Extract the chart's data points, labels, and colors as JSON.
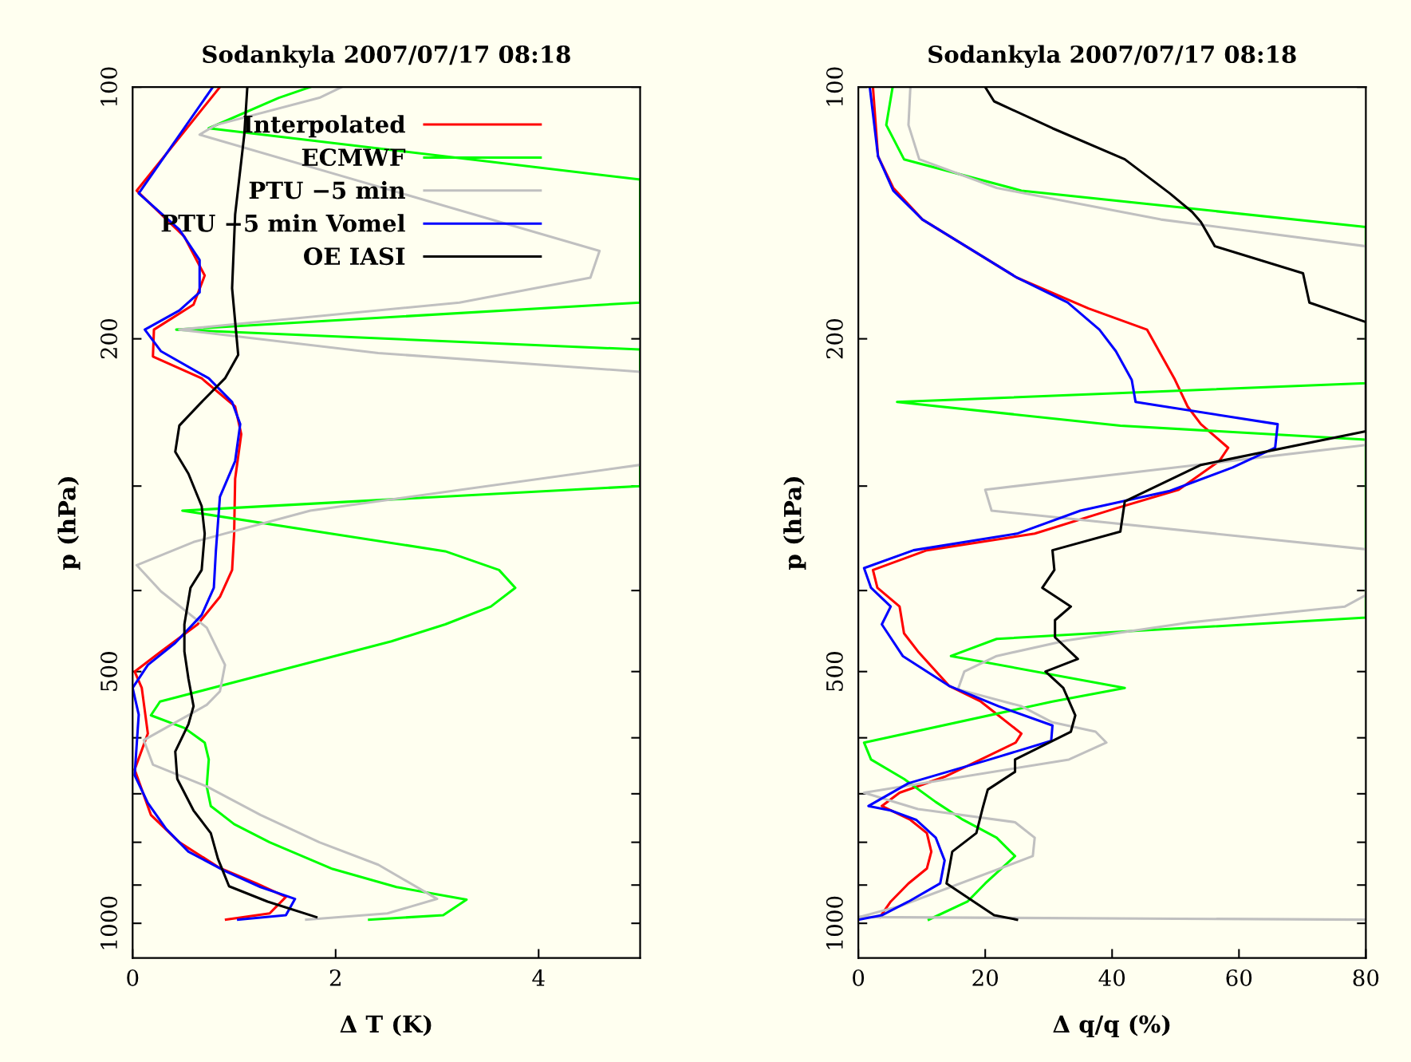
{
  "chart_data": [
    {
      "type": "line",
      "title": "Sodankyla 2007/07/17 08:18",
      "xlabel": "Δ T (K)",
      "ylabel": "p (hPa)",
      "xlim": [
        0,
        5
      ],
      "xticks": [
        0,
        2,
        4
      ],
      "ylim": [
        1100,
        100
      ],
      "log": "y",
      "yticks": [
        100,
        200,
        {
          "value": 300,
          "label": null
        },
        {
          "value": 400,
          "label": null
        },
        500,
        {
          "value": 600,
          "label": null
        },
        {
          "value": 700,
          "label": null
        },
        {
          "value": 800,
          "label": null
        },
        {
          "value": 900,
          "label": null
        },
        1000
      ],
      "legend": "top left",
      "grid": false,
      "series": [
        {
          "name": "Interpolated",
          "color": "#ff0000",
          "x": [
            0.86,
            0.04,
            0.51,
            0.71,
            0.6,
            0.21,
            0.2,
            0.68,
            1.01,
            1.07,
            1.01,
            1.0,
            0.98,
            0.86,
            0.64,
            0.28,
            0.02,
            0.09,
            0.15,
            0.02,
            0.18,
            0.46,
            0.86,
            1.22,
            1.51,
            1.35,
            0.92
          ],
          "values": [
            100,
            133,
            151,
            168,
            182,
            195,
            210,
            223,
            241,
            260,
            294,
            342,
            378,
            407,
            439,
            473,
            500,
            523,
            593,
            655,
            742,
            800,
            859,
            896,
            930,
            973,
            990
          ]
        },
        {
          "name": "ECMWF",
          "color": "#00ff00",
          "x": [
            1.75,
            1.44,
            0.75,
            5.0,
            5.0,
            0.43,
            5.0,
            5.0,
            0.49,
            3.08,
            3.61,
            3.77,
            3.53,
            3.08,
            2.55,
            0.27,
            0.18,
            0.51,
            0.71,
            0.75,
            0.73,
            0.77,
            1.0,
            1.35,
            1.97,
            2.6,
            3.29,
            3.06,
            2.33
          ],
          "values": [
            100,
            103,
            112,
            129,
            181,
            195,
            206,
            300,
            321,
            359,
            378,
            397,
            418,
            439,
            460,
            543,
            564,
            584,
            608,
            637,
            686,
            724,
            761,
            800,
            861,
            905,
            937,
            978,
            990
          ]
        },
        {
          "name": "PTU −5 min",
          "color": "#c0c0c0",
          "x": [
            2.06,
            1.84,
            0.82,
            0.66,
            4.6,
            4.51,
            3.22,
            0.46,
            2.42,
            5.0,
            5.0,
            1.75,
            0.6,
            0.04,
            0.28,
            0.73,
            0.91,
            0.86,
            0.73,
            0.11,
            0.2,
            0.73,
            1.26,
            1.84,
            2.42,
            3.0,
            2.51,
            1.71
          ],
          "values": [
            100,
            103,
            111,
            114,
            157,
            169,
            181,
            195,
            208,
            219,
            283,
            321,
            350,
            373,
            401,
            443,
            491,
            528,
            548,
            604,
            646,
            686,
            742,
            800,
            851,
            935,
            973,
            990
          ]
        },
        {
          "name": "PTU −5 min Vomel",
          "color": "#0000ff",
          "x": [
            0.79,
            0.06,
            0.46,
            0.66,
            0.66,
            0.46,
            0.12,
            0.28,
            0.75,
            0.98,
            1.06,
            1.01,
            0.86,
            0.82,
            0.8,
            0.68,
            0.42,
            0.15,
            0.0,
            0.06,
            0.02,
            0.15,
            0.33,
            0.55,
            0.91,
            1.26,
            1.6,
            1.51,
            1.04
          ],
          "values": [
            100,
            134,
            148,
            161,
            176,
            185,
            195,
            207,
            223,
            238,
            253,
            280,
            309,
            359,
            397,
            428,
            462,
            491,
            523,
            563,
            665,
            718,
            771,
            821,
            866,
            905,
            935,
            978,
            990
          ]
        },
        {
          "name": "OE IASI",
          "color": "#000000",
          "x": [
            1.13,
            1.1,
            1.01,
            0.98,
            1.04,
            0.91,
            0.68,
            0.46,
            0.42,
            0.55,
            0.68,
            0.71,
            0.68,
            0.57,
            0.51,
            0.51,
            0.55,
            0.6,
            0.55,
            0.42,
            0.44,
            0.6,
            0.77,
            0.84,
            0.95,
            1.33,
            1.81
          ],
          "values": [
            100,
            114,
            142,
            174,
            209,
            223,
            238,
            254,
            273,
            290,
            317,
            342,
            378,
            397,
            439,
            473,
            510,
            550,
            578,
            623,
            672,
            733,
            780,
            837,
            903,
            942,
            983
          ]
        }
      ]
    },
    {
      "type": "line",
      "title": "Sodankyla 2007/07/17 08:18",
      "xlabel": "Δ q/q (%)",
      "ylabel": "p (hPa)",
      "xlim": [
        0,
        80
      ],
      "xticks": [
        0,
        20,
        40,
        60,
        80
      ],
      "ylim": [
        1100,
        100
      ],
      "log": "y",
      "yticks": [
        100,
        200,
        {
          "value": 300,
          "label": null
        },
        {
          "value": 400,
          "label": null
        },
        500,
        {
          "value": 600,
          "label": null
        },
        {
          "value": 700,
          "label": null
        },
        {
          "value": 800,
          "label": null
        },
        {
          "value": 900,
          "label": null
        },
        1000
      ],
      "grid": false,
      "series": [
        {
          "color": "#ff0000",
          "x": [
            2.3,
            3.1,
            5.5,
            10.1,
            25,
            36.3,
            45.5,
            49.8,
            51.9,
            54.0,
            58.3,
            56.9,
            50.5,
            40.6,
            27.8,
            10.8,
            2.3,
            3.0,
            6.5,
            7.2,
            9.4,
            14.3,
            19.3,
            25.7,
            24.8,
            19.3,
            13.6,
            6.5,
            3.7,
            8.2,
            10.8,
            11.5,
            10.8,
            7.9,
            5.1,
            3.4
          ],
          "values": [
            100,
            121,
            132,
            144,
            169,
            184,
            195,
            223,
            241,
            253,
            270,
            280,
            303,
            319,
            342,
            358,
            378,
            397,
            418,
            450,
            473,
            520,
            543,
            593,
            608,
            637,
            668,
            698,
            724,
            752,
            780,
            821,
            860,
            896,
            942,
            983
          ]
        },
        {
          "color": "#00ff00",
          "x": [
            5.4,
            4.4,
            7.2,
            25.7,
            80,
            80,
            6.1,
            41.3,
            80,
            80,
            21.8,
            14.6,
            42.0,
            30.6,
            0.9,
            2.0,
            7.2,
            12.2,
            16.5,
            21.8,
            24.7,
            20.0,
            17.2,
            11.1
          ],
          "values": [
            100,
            111,
            122,
            133,
            147,
            226,
            238,
            254,
            264,
            431,
            457,
            479,
            523,
            543,
            608,
            637,
            672,
            716,
            752,
            790,
            831,
            896,
            942,
            990
          ]
        },
        {
          "color": "#c0c0c0",
          "x": [
            8.2,
            7.9,
            9.6,
            21.8,
            47.7,
            80,
            80,
            20.0,
            21.0,
            80,
            80,
            76.7,
            51.9,
            32.8,
            21.8,
            16.7,
            15.7,
            25.7,
            30.6,
            37.4,
            39.1,
            33.2,
            0.9,
            9.4,
            24.7,
            27.8,
            27.5,
            6.5,
            0.1,
            80
          ],
          "values": [
            100,
            111,
            122,
            132,
            144,
            155,
            268,
            303,
            321,
            357,
            405,
            418,
            437,
            459,
            479,
            500,
            525,
            550,
            575,
            590,
            608,
            637,
            698,
            730,
            757,
            790,
            831,
            954,
            983,
            990
          ]
        },
        {
          "color": "#0000ff",
          "x": [
            1.8,
            3.1,
            5.5,
            10.1,
            25,
            33.0,
            38.0,
            40.6,
            43.1,
            43.7,
            66.1,
            65.7,
            59.0,
            49.1,
            35.0,
            25,
            8.7,
            0.9,
            2.0,
            5.1,
            3.7,
            7.0,
            14.3,
            22.1,
            30.6,
            30.4,
            20.7,
            7.9,
            1.6,
            5.1,
            9.1,
            12.2,
            13.6,
            12.9,
            7.9,
            3.7,
            0.1
          ],
          "values": [
            100,
            121,
            133,
            144,
            169,
            181,
            195,
            207,
            224,
            238,
            253,
            270,
            285,
            304,
            321,
            342,
            358,
            376,
            397,
            418,
            439,
            479,
            520,
            550,
            580,
            605,
            637,
            680,
            724,
            733,
            752,
            790,
            841,
            896,
            942,
            978,
            990
          ]
        },
        {
          "color": "#000000",
          "x": [
            20.0,
            21.4,
            30.6,
            42.0,
            49.1,
            52.6,
            54.0,
            56.2,
            70.1,
            71.1,
            80,
            80,
            54.0,
            42.0,
            41.3,
            30.6,
            30.9,
            29.0,
            33.5,
            31.0,
            31.0,
            34.6,
            29.5,
            32.3,
            34.2,
            33.5,
            24.7,
            24.7,
            20.4,
            19.6,
            18.6,
            14.8,
            13.9,
            21.4,
            25.0
          ],
          "values": [
            100,
            104,
            112,
            122,
            134,
            141,
            145,
            155,
            167,
            181,
            191,
            258,
            283,
            313,
            340,
            358,
            378,
            397,
            418,
            434,
            455,
            483,
            500,
            523,
            564,
            590,
            637,
            659,
            692,
            728,
            780,
            821,
            896,
            978,
            990
          ]
        }
      ]
    }
  ]
}
